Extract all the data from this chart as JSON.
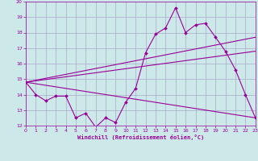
{
  "xlabel": "Windchill (Refroidissement éolien,°C)",
  "bg_color": "#cce8e8",
  "grid_color": "#aaaacc",
  "line_color": "#990099",
  "xmin": 0,
  "xmax": 23,
  "ymin": 12,
  "ymax": 20,
  "line1_x": [
    0,
    1,
    2,
    3,
    4,
    5,
    6,
    7,
    8,
    9,
    10,
    11,
    12,
    13,
    14,
    15,
    16,
    17,
    18,
    19,
    20,
    21,
    22,
    23
  ],
  "line1_y": [
    14.8,
    14.0,
    13.6,
    13.9,
    13.9,
    12.5,
    12.8,
    11.9,
    12.5,
    12.2,
    13.5,
    14.4,
    16.7,
    17.9,
    18.3,
    19.6,
    18.0,
    18.5,
    18.6,
    17.7,
    16.8,
    15.6,
    14.0,
    12.5
  ],
  "line2_x": [
    0,
    23
  ],
  "line2_y": [
    14.8,
    17.7
  ],
  "line3_x": [
    0,
    23
  ],
  "line3_y": [
    14.8,
    16.8
  ],
  "line4_x": [
    0,
    23
  ],
  "line4_y": [
    14.8,
    12.5
  ]
}
